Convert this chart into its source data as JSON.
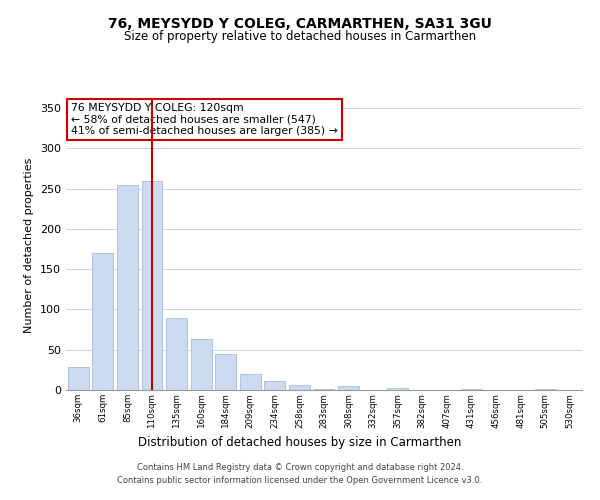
{
  "title": "76, MEYSYDD Y COLEG, CARMARTHEN, SA31 3GU",
  "subtitle": "Size of property relative to detached houses in Carmarthen",
  "xlabel": "Distribution of detached houses by size in Carmarthen",
  "ylabel": "Number of detached properties",
  "bar_labels": [
    "36sqm",
    "61sqm",
    "85sqm",
    "110sqm",
    "135sqm",
    "160sqm",
    "184sqm",
    "209sqm",
    "234sqm",
    "258sqm",
    "283sqm",
    "308sqm",
    "332sqm",
    "357sqm",
    "382sqm",
    "407sqm",
    "431sqm",
    "456sqm",
    "481sqm",
    "505sqm",
    "530sqm"
  ],
  "bar_values": [
    28,
    170,
    255,
    260,
    90,
    63,
    45,
    20,
    11,
    6,
    1,
    5,
    0,
    2,
    0,
    0,
    1,
    0,
    0,
    1,
    0
  ],
  "bar_color": "#ccdcf0",
  "bar_edge_color": "#aabbdd",
  "vline_x": 3.0,
  "vline_color": "#cc0000",
  "annotation_title": "76 MEYSYDD Y COLEG: 120sqm",
  "annotation_line1": "← 58% of detached houses are smaller (547)",
  "annotation_line2": "41% of semi-detached houses are larger (385) →",
  "annotation_box_color": "#ffffff",
  "annotation_box_edge": "#cc0000",
  "ylim": [
    0,
    360
  ],
  "yticks": [
    0,
    50,
    100,
    150,
    200,
    250,
    300,
    350
  ],
  "footer1": "Contains HM Land Registry data © Crown copyright and database right 2024.",
  "footer2": "Contains public sector information licensed under the Open Government Licence v3.0.",
  "bg_color": "#ffffff",
  "grid_color": "#c8d4e8"
}
